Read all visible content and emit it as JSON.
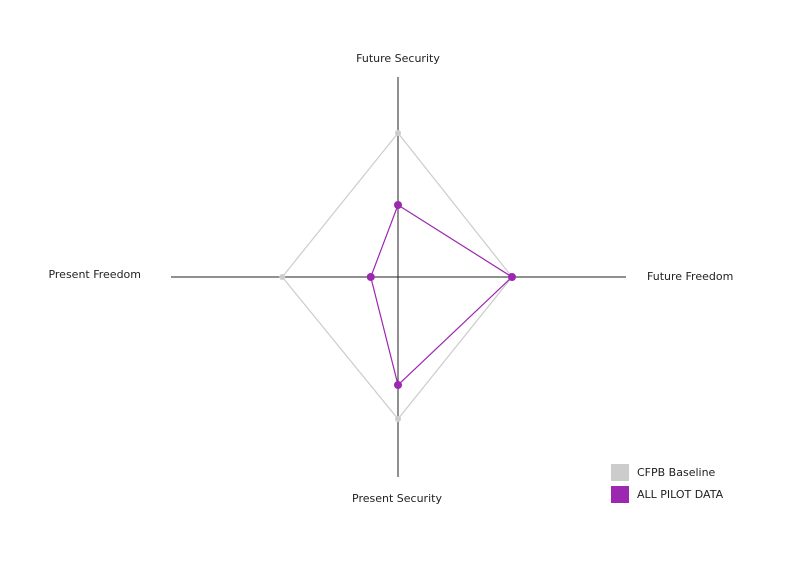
{
  "chart_data": {
    "type": "radar",
    "axes": [
      "Future Security",
      "Future Freedom",
      "Present Security",
      "Present Freedom"
    ],
    "rlim": [
      0,
      100
    ],
    "series": [
      {
        "name": "CFPB Baseline",
        "color": "#cccccc",
        "values": [
          72,
          50,
          71,
          51
        ]
      },
      {
        "name": "ALL PILOT DATA",
        "color": "#9c27b0",
        "values": [
          36,
          50,
          54,
          12
        ]
      }
    ],
    "legend": "bottom-right"
  }
}
